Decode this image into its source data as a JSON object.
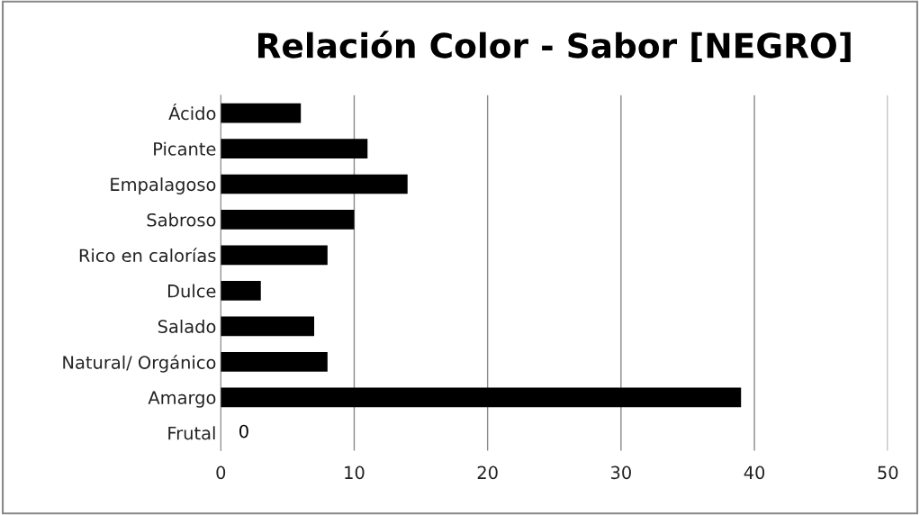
{
  "chart_data": {
    "type": "bar",
    "orientation": "horizontal",
    "title": "Relación Color - Sabor [NEGRO]",
    "categories": [
      "Ácido",
      "Picante",
      "Empalagoso",
      "Sabroso",
      "Rico en calorías",
      "Dulce",
      "Salado",
      "Natural/ Orgánico",
      "Amargo",
      "Frutal"
    ],
    "values": [
      6,
      11,
      14,
      10,
      8,
      3,
      7,
      8,
      39,
      0
    ],
    "value_labels": [
      null,
      null,
      null,
      null,
      null,
      null,
      null,
      null,
      null,
      "0"
    ],
    "color": "#000000",
    "xlim": [
      0,
      50
    ],
    "xticks": [
      0,
      10,
      20,
      30,
      40,
      50
    ],
    "grid": "x",
    "legend": false
  }
}
